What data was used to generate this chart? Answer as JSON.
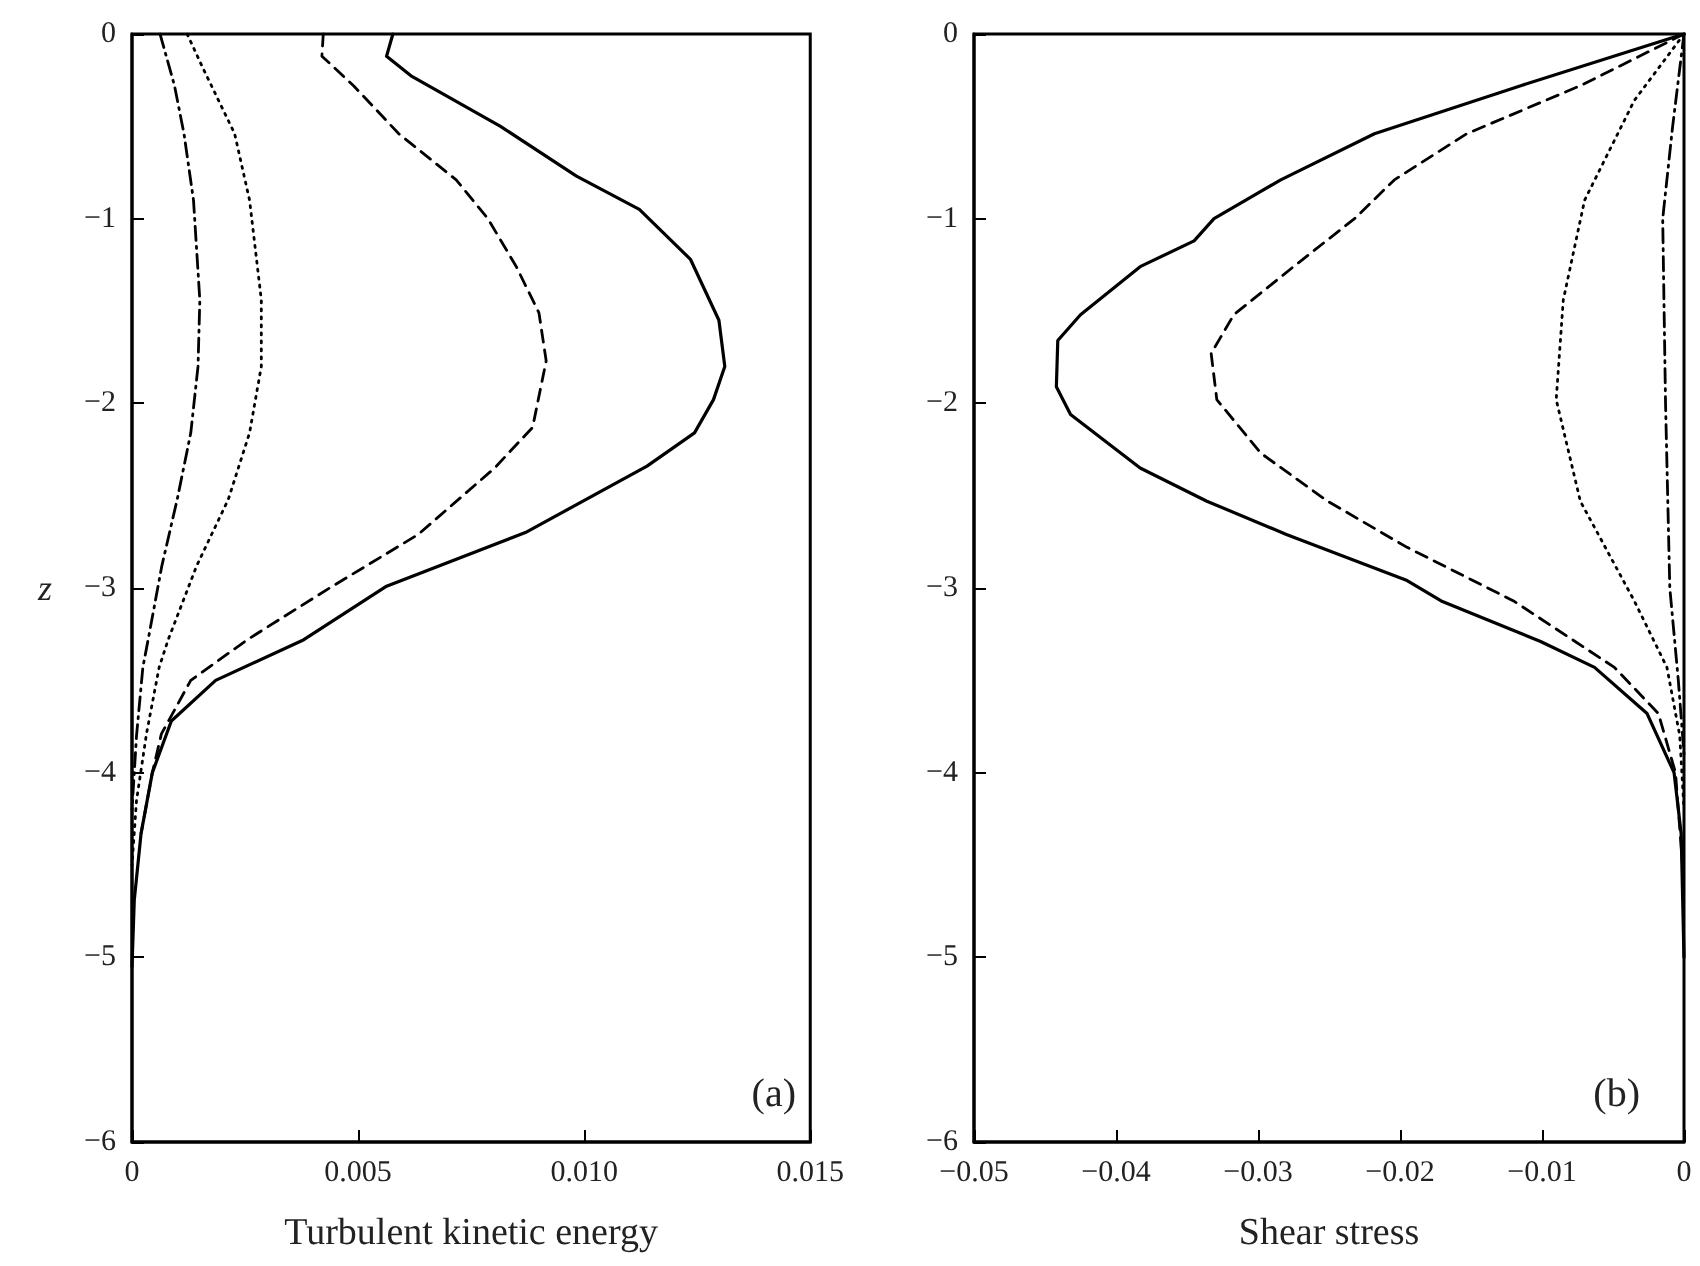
{
  "chart_data": [
    {
      "type": "line",
      "xlabel": "Turbulent kinetic energy",
      "ylabel": "z",
      "annotations": [
        "(a)"
      ],
      "xlim": [
        0,
        0.015
      ],
      "ylim": [
        -6,
        0
      ],
      "xticks": [
        0,
        0.005,
        {
          "value": 0.01,
          "label": "0.010"
        },
        0.015
      ],
      "yticks": [
        {
          "value": -6,
          "label": "−6"
        },
        {
          "value": -5,
          "label": "−5"
        },
        {
          "value": -4,
          "label": "−4"
        },
        {
          "value": -3,
          "label": "−3"
        },
        {
          "value": -2,
          "label": "−2"
        },
        {
          "value": -1,
          "label": "−1"
        },
        0
      ],
      "grid": false,
      "series": [
        {
          "color": "#000000",
          "line_style": "solid",
          "x": [
            0.00577,
            0.00563,
            0.00619,
            0.00815,
            0.00983,
            0.01122,
            0.01235,
            0.01298,
            0.01311,
            0.01286,
            0.01244,
            0.01139,
            0.0087,
            0.00563,
            0.0038,
            0.00185,
            0.00087,
            0.00045,
            0.0002,
            5e-05,
            0
          ],
          "values": [
            0,
            -0.12,
            -0.23,
            -0.5,
            -0.77,
            -0.95,
            -1.22,
            -1.55,
            -1.8,
            -1.98,
            -2.16,
            -2.34,
            -2.7,
            -2.99,
            -3.28,
            -3.5,
            -3.72,
            -4.0,
            -4.33,
            -4.69,
            -5.05
          ]
        },
        {
          "color": "#000000",
          "line_style": "dashed",
          "x": [
            0.00423,
            0.0042,
            0.0049,
            0.0059,
            0.00717,
            0.00787,
            0.0085,
            0.009,
            0.00916,
            0.00886,
            0.00802,
            0.00633,
            0.00437,
            0.00255,
            0.0013,
            0.00065,
            0.00045,
            0.0002
          ],
          "values": [
            0,
            -0.12,
            -0.28,
            -0.54,
            -0.79,
            -1.0,
            -1.26,
            -1.51,
            -1.77,
            -2.13,
            -2.35,
            -2.71,
            -3.0,
            -3.28,
            -3.5,
            -3.79,
            -4.0,
            -4.33
          ]
        },
        {
          "color": "#000000",
          "line_style": "dotted",
          "x": [
            0.00122,
            0.00156,
            0.00227,
            0.0026,
            0.00286,
            0.00286,
            0.0026,
            0.00213,
            0.00143,
            0.0008,
            0.0006,
            0.00032,
            0.0001,
            0
          ],
          "values": [
            0,
            -0.18,
            -0.54,
            -0.9,
            -1.44,
            -1.8,
            -2.16,
            -2.52,
            -2.88,
            -3.28,
            -3.43,
            -3.79,
            -4.15,
            -4.5
          ]
        },
        {
          "color": "#000000",
          "line_style": "dashdot",
          "x": [
            0.00062,
            0.00094,
            0.00115,
            0.00136,
            0.0015,
            0.00146,
            0.0013,
            0.001,
            0.00066,
            0.00038,
            0.00024,
            0.0001,
            0
          ],
          "values": [
            0,
            -0.28,
            -0.54,
            -0.9,
            -1.44,
            -1.8,
            -2.16,
            -2.52,
            -2.88,
            -3.25,
            -3.43,
            -3.8,
            -4.2
          ]
        }
      ]
    },
    {
      "type": "line",
      "xlabel": "Shear stress",
      "annotations": [
        "(b)"
      ],
      "xlim": [
        -0.05,
        0
      ],
      "ylim": [
        -6,
        0
      ],
      "xticks": [
        {
          "value": -0.05,
          "label": "−0.05"
        },
        {
          "value": -0.04,
          "label": "−0.04"
        },
        {
          "value": -0.03,
          "label": "−0.03"
        },
        {
          "value": -0.02,
          "label": "−0.02"
        },
        {
          "value": -0.01,
          "label": "−0.01"
        },
        0
      ],
      "yticks": [
        {
          "value": -6,
          "label": "−6"
        },
        {
          "value": -5,
          "label": "−5"
        },
        {
          "value": -4,
          "label": "−4"
        },
        {
          "value": -3,
          "label": "−3"
        },
        {
          "value": -2,
          "label": "−2"
        },
        {
          "value": -1,
          "label": "−1"
        },
        0
      ],
      "grid": false,
      "series": [
        {
          "color": "#000000",
          "line_style": "solid",
          "x": [
            0,
            -0.0115,
            -0.0218,
            -0.0284,
            -0.0331,
            -0.0345,
            -0.0383,
            -0.0425,
            -0.0441,
            -0.0442,
            -0.0432,
            -0.0383,
            -0.0336,
            -0.028,
            -0.0195,
            -0.0171,
            -0.0101,
            -0.0063,
            -0.0026,
            -0.0007,
            -0.0002,
            0
          ],
          "values": [
            0,
            -0.28,
            -0.54,
            -0.79,
            -1.0,
            -1.12,
            -1.26,
            -1.52,
            -1.66,
            -1.91,
            -2.06,
            -2.35,
            -2.53,
            -2.71,
            -2.96,
            -3.07,
            -3.29,
            -3.43,
            -3.68,
            -4.0,
            -4.33,
            -5
          ]
        },
        {
          "color": "#000000",
          "line_style": "dashed",
          "x": [
            0,
            -0.0073,
            -0.0153,
            -0.0204,
            -0.0232,
            -0.0275,
            -0.0317,
            -0.0333,
            -0.0329,
            -0.0298,
            -0.0251,
            -0.0195,
            -0.012,
            -0.0049,
            -0.0018,
            -0.0006,
            -0.0001
          ],
          "values": [
            0,
            -0.28,
            -0.54,
            -0.79,
            -1.0,
            -1.26,
            -1.52,
            -1.73,
            -1.98,
            -2.27,
            -2.53,
            -2.78,
            -3.07,
            -3.43,
            -3.68,
            -4.0,
            -4.5
          ]
        },
        {
          "color": "#000000",
          "line_style": "dotted",
          "x": [
            0,
            -0.0035,
            -0.007,
            -0.0085,
            -0.009,
            -0.0073,
            -0.0035,
            -0.0012,
            -0.0003,
            0
          ],
          "values": [
            0,
            -0.36,
            -0.9,
            -1.44,
            -1.98,
            -2.53,
            -3.07,
            -3.43,
            -3.8,
            -4.2
          ]
        },
        {
          "color": "#000000",
          "line_style": "dashdot",
          "x": [
            0,
            -0.0008,
            -0.0015,
            -0.0013,
            -0.001,
            -0.0004,
            0
          ],
          "values": [
            0,
            -0.5,
            -1.0,
            -2.0,
            -3.0,
            -3.5,
            -3.9
          ]
        }
      ]
    }
  ]
}
